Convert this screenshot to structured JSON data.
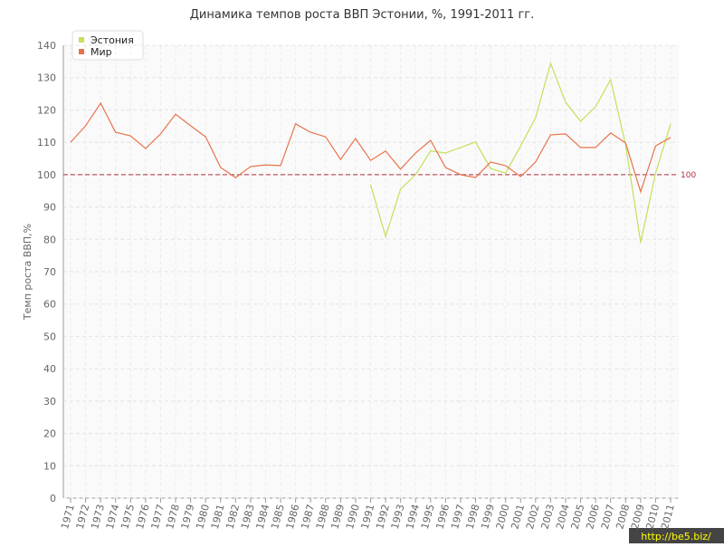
{
  "chart_data": {
    "type": "line",
    "title": "Динамика темпов роста ВВП Эстонии, %, 1991-2011 гг.",
    "y_label": "Темп роста ВВП,%",
    "categories": [
      "1971",
      "1972",
      "1973",
      "1974",
      "1975",
      "1976",
      "1977",
      "1978",
      "1979",
      "1980",
      "1981",
      "1982",
      "1983",
      "1984",
      "1985",
      "1986",
      "1987",
      "1988",
      "1989",
      "1990",
      "1991",
      "1992",
      "1993",
      "1994",
      "1995",
      "1996",
      "1997",
      "1998",
      "1999",
      "2000",
      "2001",
      "2002",
      "2003",
      "2004",
      "2005",
      "2006",
      "2007",
      "2008",
      "2009",
      "2010",
      "2011"
    ],
    "series": [
      {
        "name": "Эстония",
        "color": "#c5e05a",
        "values": [
          null,
          null,
          null,
          null,
          null,
          null,
          null,
          null,
          null,
          null,
          null,
          null,
          null,
          null,
          null,
          null,
          null,
          null,
          null,
          null,
          96.9,
          80.9,
          95.5,
          100,
          107.3,
          106.7,
          108.4,
          110.1,
          101.9,
          100.5,
          108.9,
          117.6,
          134.4,
          122.4,
          116.5,
          121.0,
          129.4,
          109.2,
          79.0,
          100.5,
          115.7
        ]
      },
      {
        "name": "Мир",
        "color": "#e8734a",
        "values": [
          110.0,
          115.1,
          122.1,
          113.1,
          112.0,
          108.1,
          112.6,
          118.7,
          115.1,
          111.7,
          102.2,
          99.1,
          102.5,
          103.0,
          102.8,
          115.7,
          113.1,
          111.7,
          104.7,
          111.2,
          104.4,
          107.3,
          101.7,
          106.7,
          110.6,
          102.2,
          100.0,
          99.1,
          103.9,
          102.8,
          99.4,
          103.9,
          112.3,
          112.6,
          108.4,
          108.4,
          112.9,
          109.8,
          94.7,
          108.9,
          111.5
        ]
      }
    ],
    "ylim": [
      0,
      140
    ],
    "yticks": [
      0,
      10,
      20,
      30,
      40,
      50,
      60,
      70,
      80,
      90,
      100,
      110,
      120,
      130,
      140
    ],
    "grid": true,
    "legend": "top-left",
    "reference_line": 100,
    "reference_color": "#b03040",
    "watermark": "http://be5.biz/"
  }
}
